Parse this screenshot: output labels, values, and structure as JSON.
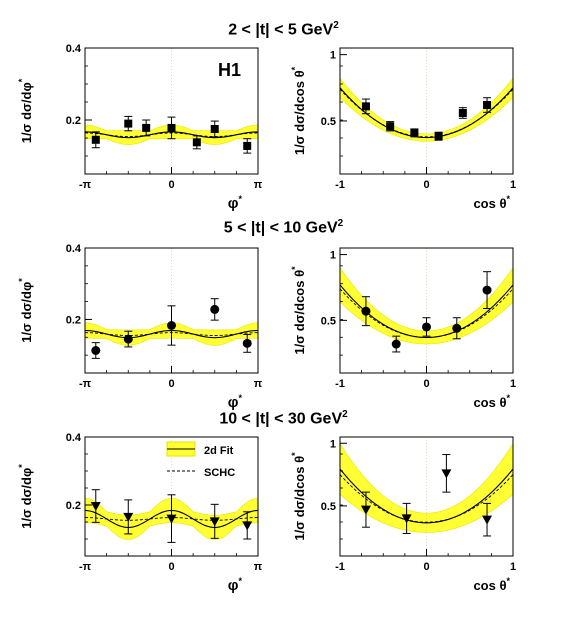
{
  "figure": {
    "experiment_label": "H1",
    "legend": {
      "fit_label": "2d Fit",
      "schc_label": "SCHC"
    }
  },
  "colors": {
    "band": "#ffff33",
    "band_edge": "#e6e600",
    "fit_line": "#000000",
    "schc_line": "#000000",
    "marker": "#000000"
  },
  "rows": [
    {
      "title": "2 < |t| < 5 GeV",
      "title_exp": "2"
    },
    {
      "title": "5 < |t| < 10 GeV",
      "title_exp": "2"
    },
    {
      "title": "10 < |t| < 30 GeV",
      "title_exp": "2"
    }
  ],
  "chart_data": [
    {
      "type": "scatter",
      "row": 0,
      "col": 0,
      "marker": "square",
      "xlabel": "φ",
      "xlabel_sup": "*",
      "ylabel": "1/σ dσ/dφ",
      "ylabel_sup": "*",
      "xlim": [
        -3.1416,
        3.1416
      ],
      "ylim": [
        0.05,
        0.4
      ],
      "xticks": [
        {
          "v": -3.1416,
          "l": "-π"
        },
        {
          "v": 0,
          "l": "0"
        },
        {
          "v": 3.1416,
          "l": "π"
        }
      ],
      "yticks": [
        {
          "v": 0.2,
          "l": "0.2"
        },
        {
          "v": 0.4,
          "l": "0.4"
        }
      ],
      "x": [
        -2.75,
        -1.57,
        -0.92,
        0.0,
        0.92,
        1.57,
        2.75
      ],
      "y": [
        0.145,
        0.19,
        0.178,
        0.178,
        0.138,
        0.175,
        0.128
      ],
      "err": [
        0.022,
        0.02,
        0.022,
        0.03,
        0.018,
        0.022,
        0.02
      ],
      "fit": {
        "kind": "cos2",
        "a0": 0.159,
        "a2": 0.008
      },
      "fit_band": 0.016,
      "schc": {
        "kind": "cos2",
        "a0": 0.159,
        "a2": 0.005
      }
    },
    {
      "type": "scatter",
      "row": 0,
      "col": 1,
      "marker": "square",
      "xlabel": "cos θ",
      "xlabel_sup": "*",
      "ylabel": "1/σ dσ/dcos θ",
      "ylabel_sup": "*",
      "xlim": [
        -1,
        1
      ],
      "ylim": [
        0.1,
        1.05
      ],
      "xticks": [
        {
          "v": -1,
          "l": "-1"
        },
        {
          "v": 0,
          "l": "0"
        },
        {
          "v": 1,
          "l": "1"
        }
      ],
      "yticks": [
        {
          "v": 0.5,
          "l": "0.5"
        },
        {
          "v": 1,
          "l": "1"
        }
      ],
      "x": [
        -0.7,
        -0.42,
        -0.14,
        0.14,
        0.42,
        0.7
      ],
      "y": [
        0.61,
        0.46,
        0.41,
        0.385,
        0.56,
        0.62
      ],
      "err": [
        0.055,
        0.035,
        0.03,
        0.03,
        0.04,
        0.055
      ],
      "fit": {
        "kind": "quad",
        "a": 0.375,
        "b": 0.375
      },
      "fit_band": 0.05,
      "schc": {
        "kind": "quad",
        "a": 0.38,
        "b": 0.36
      }
    },
    {
      "type": "scatter",
      "row": 1,
      "col": 0,
      "marker": "circle",
      "xlabel": "φ",
      "xlabel_sup": "*",
      "ylabel": "1/σ dσ/dφ",
      "ylabel_sup": "*",
      "xlim": [
        -3.1416,
        3.1416
      ],
      "ylim": [
        0.05,
        0.4
      ],
      "xticks": [
        {
          "v": -3.1416,
          "l": "-π"
        },
        {
          "v": 0,
          "l": "0"
        },
        {
          "v": 3.1416,
          "l": "π"
        }
      ],
      "yticks": [
        {
          "v": 0.2,
          "l": "0.2"
        },
        {
          "v": 0.4,
          "l": "0.4"
        }
      ],
      "x": [
        -2.75,
        -1.57,
        0.0,
        1.57,
        2.75
      ],
      "y": [
        0.113,
        0.145,
        0.183,
        0.228,
        0.133
      ],
      "err": [
        0.022,
        0.022,
        0.055,
        0.03,
        0.025
      ],
      "fit": {
        "kind": "cos2",
        "a0": 0.159,
        "a2": 0.01
      },
      "fit_band": 0.018,
      "schc": {
        "kind": "cos2",
        "a0": 0.159,
        "a2": 0.004
      }
    },
    {
      "type": "scatter",
      "row": 1,
      "col": 1,
      "marker": "circle",
      "xlabel": "cos θ",
      "xlabel_sup": "*",
      "ylabel": "1/σ dσ/dcos θ",
      "ylabel_sup": "*",
      "xlim": [
        -1,
        1
      ],
      "ylim": [
        0.1,
        1.05
      ],
      "xticks": [
        {
          "v": -1,
          "l": "-1"
        },
        {
          "v": 0,
          "l": "0"
        },
        {
          "v": 1,
          "l": "1"
        }
      ],
      "yticks": [
        {
          "v": 0.5,
          "l": "0.5"
        },
        {
          "v": 1,
          "l": "1"
        }
      ],
      "x": [
        -0.7,
        -0.35,
        0.0,
        0.35,
        0.7
      ],
      "y": [
        0.57,
        0.32,
        0.45,
        0.44,
        0.73
      ],
      "err": [
        0.11,
        0.06,
        0.07,
        0.08,
        0.14
      ],
      "fit": {
        "kind": "quad",
        "a": 0.37,
        "b": 0.4
      },
      "fit_band": 0.09,
      "schc": {
        "kind": "quad",
        "a": 0.37,
        "b": 0.37
      }
    },
    {
      "type": "scatter",
      "row": 2,
      "col": 0,
      "marker": "triangle-down",
      "xlabel": "φ",
      "xlabel_sup": "*",
      "ylabel": "1/σ dσ/dφ",
      "ylabel_sup": "*",
      "xlim": [
        -3.1416,
        3.1416
      ],
      "ylim": [
        0.05,
        0.4
      ],
      "xticks": [
        {
          "v": -3.1416,
          "l": "-π"
        },
        {
          "v": 0,
          "l": "0"
        },
        {
          "v": 3.1416,
          "l": "π"
        }
      ],
      "yticks": [
        {
          "v": 0.2,
          "l": "0.2"
        },
        {
          "v": 0.4,
          "l": "0.4"
        }
      ],
      "x": [
        -2.75,
        -1.57,
        0.0,
        1.57,
        2.75
      ],
      "y": [
        0.197,
        0.165,
        0.16,
        0.152,
        0.14
      ],
      "err": [
        0.048,
        0.05,
        0.07,
        0.05,
        0.04
      ],
      "fit": {
        "kind": "cos2",
        "a0": 0.159,
        "a2": 0.025
      },
      "fit_band": 0.03,
      "schc": {
        "kind": "cos2",
        "a0": 0.159,
        "a2": 0.004
      }
    },
    {
      "type": "scatter",
      "row": 2,
      "col": 1,
      "marker": "triangle-down",
      "xlabel": "cos θ",
      "xlabel_sup": "*",
      "ylabel": "1/σ dσ/dcos θ",
      "ylabel_sup": "*",
      "xlim": [
        -1,
        1
      ],
      "ylim": [
        0.1,
        1.05
      ],
      "xticks": [
        {
          "v": -1,
          "l": "-1"
        },
        {
          "v": 0,
          "l": "0"
        },
        {
          "v": 1,
          "l": "1"
        }
      ],
      "yticks": [
        {
          "v": 0.5,
          "l": "0.5"
        },
        {
          "v": 1,
          "l": "1"
        }
      ],
      "x": [
        -0.7,
        -0.23,
        0.23,
        0.7
      ],
      "y": [
        0.47,
        0.4,
        0.76,
        0.39
      ],
      "err": [
        0.14,
        0.12,
        0.15,
        0.13
      ],
      "fit": {
        "kind": "quad",
        "a": 0.365,
        "b": 0.43
      },
      "fit_band": 0.14,
      "schc": {
        "kind": "quad",
        "a": 0.37,
        "b": 0.38
      }
    }
  ]
}
